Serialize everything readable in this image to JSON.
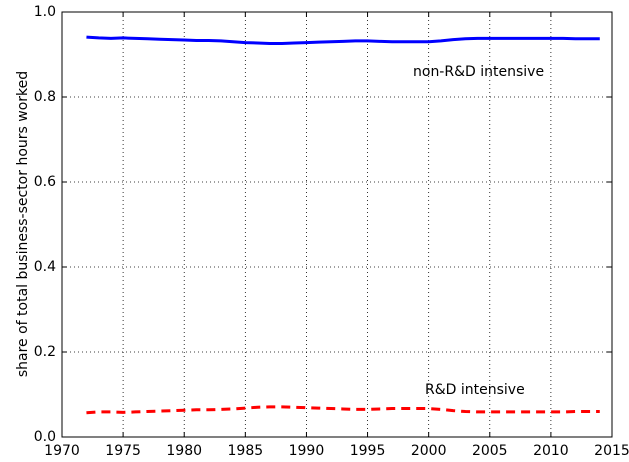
{
  "chart_data": {
    "type": "line",
    "ylabel": "share of total business-sector hours worked",
    "x": [
      1972,
      1973,
      1974,
      1975,
      1976,
      1977,
      1978,
      1979,
      1980,
      1981,
      1982,
      1983,
      1984,
      1985,
      1986,
      1987,
      1988,
      1989,
      1990,
      1991,
      1992,
      1993,
      1994,
      1995,
      1996,
      1997,
      1998,
      1999,
      2000,
      2001,
      2002,
      2003,
      2004,
      2005,
      2006,
      2007,
      2008,
      2009,
      2010,
      2011,
      2012,
      2013,
      2014
    ],
    "series": [
      {
        "name": "non-R&D intensive",
        "color": "#0000ff",
        "dashed": false,
        "values": [
          0.941,
          0.939,
          0.938,
          0.939,
          0.938,
          0.937,
          0.936,
          0.935,
          0.934,
          0.933,
          0.933,
          0.932,
          0.93,
          0.928,
          0.927,
          0.926,
          0.926,
          0.927,
          0.928,
          0.929,
          0.93,
          0.931,
          0.932,
          0.932,
          0.931,
          0.93,
          0.93,
          0.93,
          0.93,
          0.932,
          0.935,
          0.937,
          0.938,
          0.938,
          0.938,
          0.938,
          0.938,
          0.938,
          0.938,
          0.938,
          0.937,
          0.937,
          0.937
        ]
      },
      {
        "name": "R&D intensive",
        "color": "#ff0000",
        "dashed": true,
        "values": [
          0.057,
          0.059,
          0.059,
          0.058,
          0.059,
          0.06,
          0.061,
          0.062,
          0.063,
          0.064,
          0.064,
          0.065,
          0.066,
          0.068,
          0.07,
          0.071,
          0.071,
          0.07,
          0.069,
          0.068,
          0.067,
          0.066,
          0.065,
          0.065,
          0.066,
          0.067,
          0.067,
          0.067,
          0.067,
          0.065,
          0.062,
          0.06,
          0.059,
          0.059,
          0.059,
          0.059,
          0.059,
          0.059,
          0.059,
          0.059,
          0.06,
          0.06,
          0.06
        ]
      }
    ],
    "xlim": [
      1970,
      2015
    ],
    "xticks": [
      1970,
      1975,
      1980,
      1985,
      1990,
      1995,
      2000,
      2005,
      2010,
      2015
    ],
    "ylim": [
      0,
      1
    ],
    "yticks": [
      {
        "value": 0,
        "label": "0.0"
      },
      0.2,
      0.4,
      0.6,
      0.8,
      {
        "value": 1,
        "label": "1.0"
      }
    ],
    "grid": true
  }
}
